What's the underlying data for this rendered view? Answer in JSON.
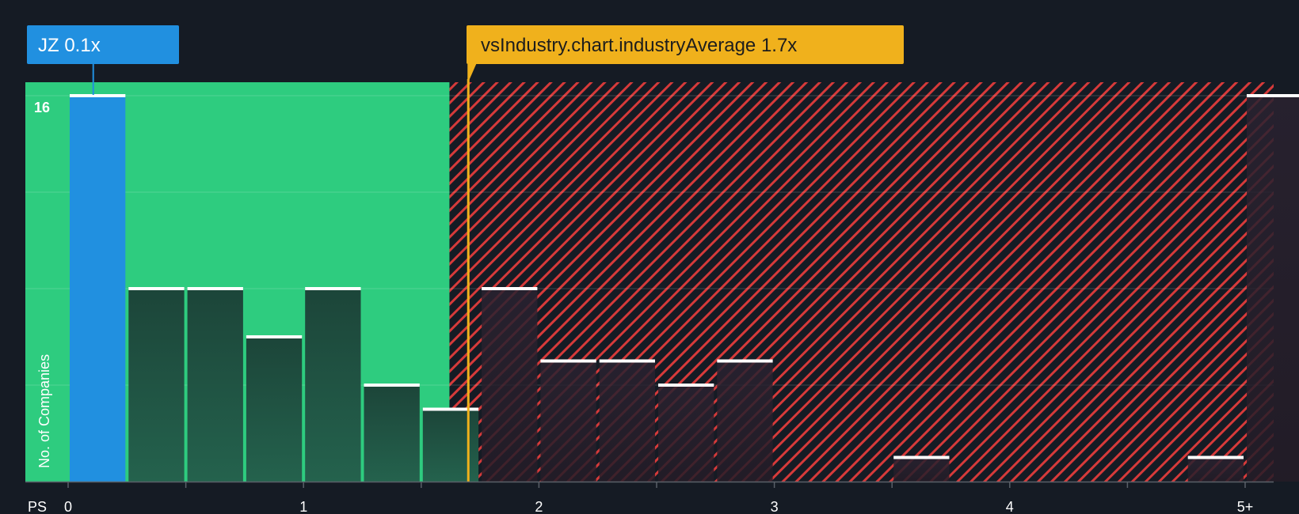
{
  "chart_data": {
    "type": "bar",
    "title": "",
    "x_axis_prefix": "PS",
    "x_ticks": [
      "0",
      "1",
      "2",
      "3",
      "4",
      "5+"
    ],
    "x_range": [
      0,
      5.1
    ],
    "ylabel": "No. of Companies",
    "ylim": [
      0,
      16
    ],
    "y_tick_labels": [
      {
        "value": 16,
        "label": "16"
      }
    ],
    "bin_width": 0.25,
    "bins": [
      {
        "start": 0.0,
        "count": 16,
        "highlight": true
      },
      {
        "start": 0.25,
        "count": 8
      },
      {
        "start": 0.5,
        "count": 8
      },
      {
        "start": 0.75,
        "count": 6
      },
      {
        "start": 1.0,
        "count": 8
      },
      {
        "start": 1.25,
        "count": 4
      },
      {
        "start": 1.5,
        "count": 3
      },
      {
        "start": 1.75,
        "count": 8
      },
      {
        "start": 2.0,
        "count": 5
      },
      {
        "start": 2.25,
        "count": 5
      },
      {
        "start": 2.5,
        "count": 4
      },
      {
        "start": 2.75,
        "count": 5
      },
      {
        "start": 3.0,
        "count": 0
      },
      {
        "start": 3.25,
        "count": 0
      },
      {
        "start": 3.5,
        "count": 1
      },
      {
        "start": 3.75,
        "count": 0
      },
      {
        "start": 4.0,
        "count": 0
      },
      {
        "start": 4.25,
        "count": 0
      },
      {
        "start": 4.5,
        "count": 0
      },
      {
        "start": 4.75,
        "count": 1
      },
      {
        "start": 5.0,
        "count": 16
      }
    ],
    "company": {
      "label": "JZ 0.1x",
      "value": 0.1
    },
    "industry_average": {
      "label": "vsIndustry.chart.industryAverage 1.7x",
      "value": 1.7
    },
    "fair_zone_end": 1.62,
    "colors": {
      "background": "#151b24",
      "fair_zone": "#2ecc7f",
      "company_bar": "#2190e0",
      "bar_dark": "#1e4d40",
      "bar_dark_right": "#2a2530",
      "expensive_stripe": "#d63a3a",
      "company_callout": "#2190e0",
      "industry_callout": "#f0b11c",
      "industry_line": "#f0b11c"
    }
  }
}
